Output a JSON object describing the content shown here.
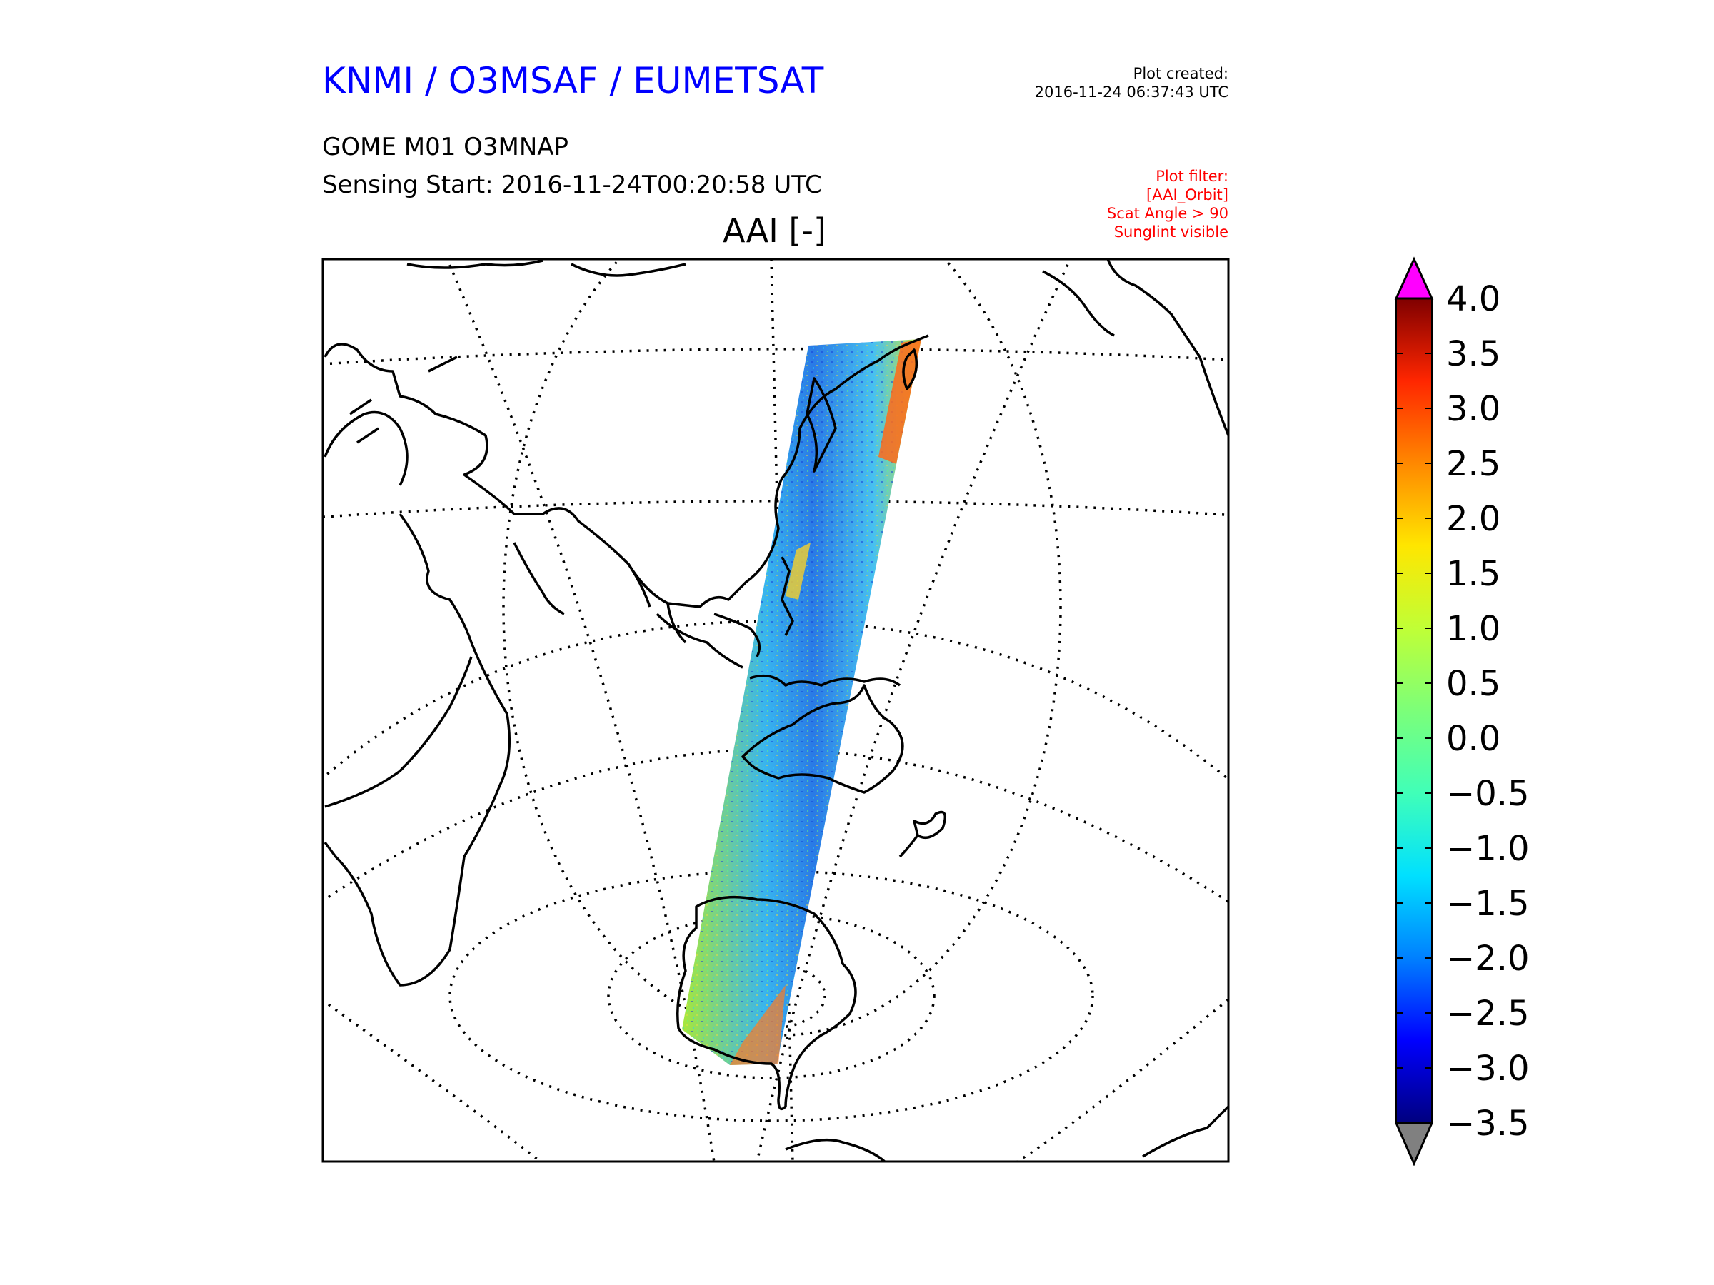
{
  "header": {
    "org_title": "KNMI / O3MSAF / EUMETSAT",
    "product": "GOME M01 O3MNAP",
    "sensing_start": "Sensing Start: 2016-11-24T00:20:58 UTC",
    "map_title": "AAI [-]",
    "created_label": "Plot created:",
    "created_time": "2016-11-24 06:37:43 UTC",
    "filter_label": "Plot filter:",
    "filter_lines": [
      "[AAI_Orbit]",
      "Scat Angle > 90",
      "Sunglint visible"
    ]
  },
  "colorbar": {
    "ticks": [
      "4.0",
      "3.5",
      "3.0",
      "2.5",
      "2.0",
      "1.5",
      "1.0",
      "0.5",
      "0.0",
      "−0.5",
      "−1.0",
      "−1.5",
      "−2.0",
      "−2.5",
      "−3.0",
      "−3.5"
    ],
    "min": -3.5,
    "max": 4.0,
    "over_color": "#ff00ff",
    "under_color": "#808080",
    "colormap_stops": [
      "#00007f",
      "#0000ff",
      "#0080ff",
      "#00e0ff",
      "#40ffb8",
      "#7cff79",
      "#c0ff36",
      "#ffe600",
      "#ff8800",
      "#ff2600",
      "#7f0000"
    ]
  },
  "map": {
    "projection": "orthographic (centered on the western Pacific / Asia)",
    "graticule_style": "dotted",
    "coastline_color": "#000000",
    "swath_colors": [
      "#9ee33c",
      "#3ab0f0",
      "#1f6ee8",
      "#f0d030",
      "#ff6a1a"
    ]
  }
}
